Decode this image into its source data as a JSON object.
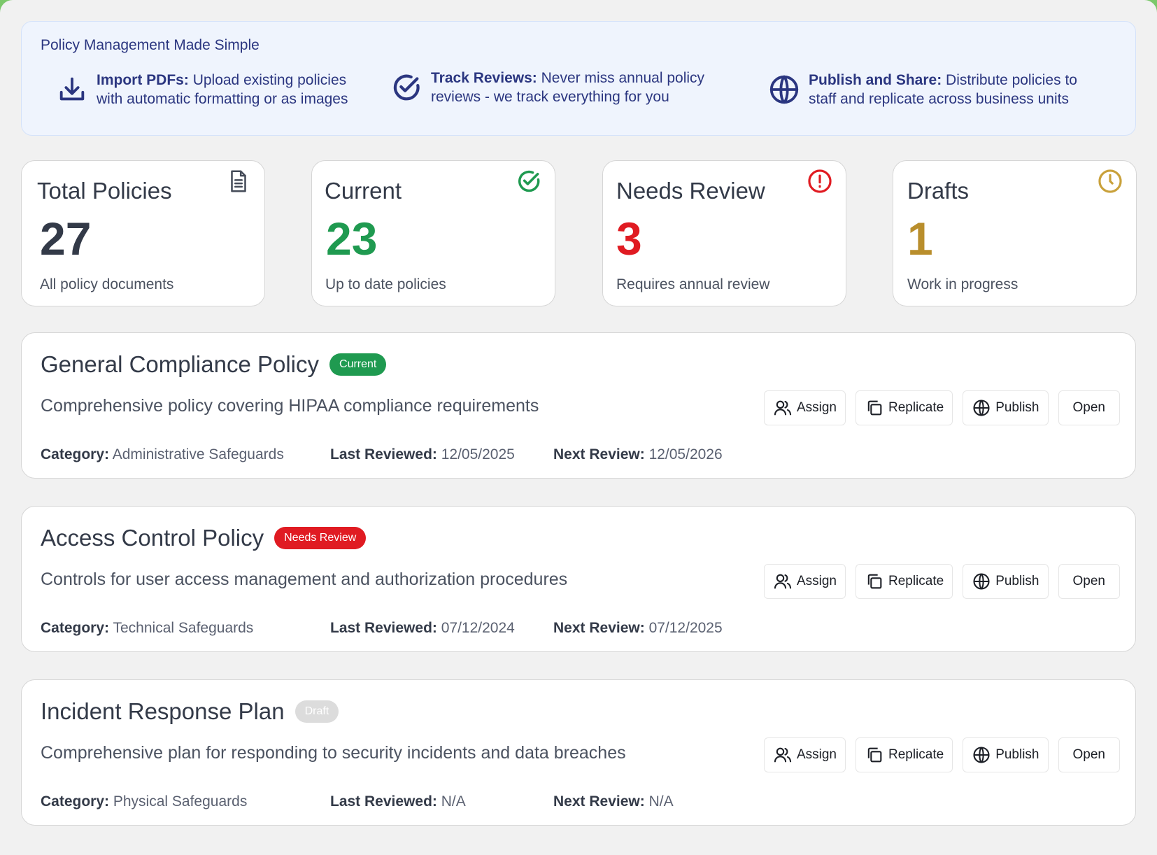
{
  "banner": {
    "title": "Policy Management Made Simple",
    "features": [
      {
        "icon": "download-icon",
        "bold": "Import PDFs:",
        "line1": "Upload existing policies",
        "line2": "with automatic formatting or as images"
      },
      {
        "icon": "check-circle-icon",
        "bold": "Track Reviews:",
        "line1": "Never miss annual policy",
        "line2": "reviews - we track everything for you"
      },
      {
        "icon": "globe-icon",
        "bold": "Publish and Share:",
        "line1": "Distribute policies to",
        "line2": "staff and replicate across business units"
      }
    ]
  },
  "stats": [
    {
      "label": "Total Policies",
      "value": "27",
      "sub": "All policy documents",
      "icon": "document-icon",
      "color": "#333a48"
    },
    {
      "label": "Current",
      "value": "23",
      "sub": "Up to date policies",
      "icon": "check-circle-icon",
      "color": "#1f9a50"
    },
    {
      "label": "Needs Review",
      "value": "3",
      "sub": "Requires annual review",
      "icon": "alert-circle-icon",
      "color": "#e01b22"
    },
    {
      "label": "Drafts",
      "value": "1",
      "sub": "Work in progress",
      "icon": "clock-icon",
      "color": "#b98e2c"
    }
  ],
  "policies": [
    {
      "title": "General Compliance Policy",
      "badge": "Current",
      "badge_color": "#1f9a50",
      "description": "Comprehensive policy covering HIPAA compliance requirements",
      "category_label": "Category:",
      "category": "Administrative Safeguards",
      "last_reviewed_label": "Last Reviewed:",
      "last_reviewed": "12/05/2025",
      "next_review_label": "Next Review:",
      "next_review": "12/05/2026"
    },
    {
      "title": "Access Control Policy",
      "badge": "Needs Review",
      "badge_color": "#e01b22",
      "description": "Controls for user access management and authorization procedures",
      "category_label": "Category:",
      "category": "Technical Safeguards",
      "last_reviewed_label": "Last Reviewed:",
      "last_reviewed": "07/12/2024",
      "next_review_label": "Next Review:",
      "next_review": "07/12/2025"
    },
    {
      "title": "Incident Response Plan",
      "badge": "Draft",
      "badge_color": "#dcdcdc",
      "description": "Comprehensive plan for responding to security incidents and data breaches",
      "category_label": "Category:",
      "category": "Physical Safeguards",
      "last_reviewed_label": "Last Reviewed:",
      "last_reviewed": "N/A",
      "next_review_label": "Next Review:",
      "next_review": "N/A"
    }
  ],
  "actions": {
    "assign": "Assign",
    "replicate": "Replicate",
    "publish": "Publish",
    "open": "Open"
  }
}
